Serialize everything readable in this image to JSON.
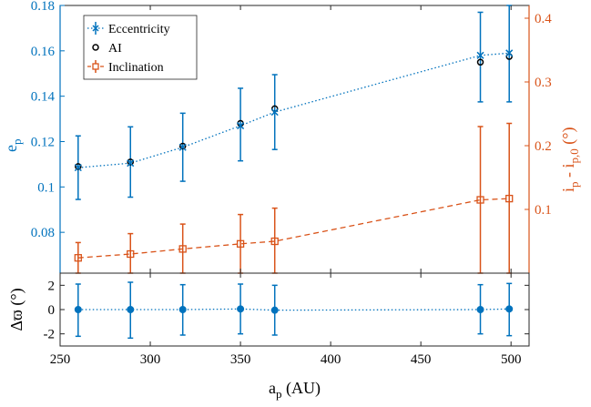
{
  "colors": {
    "blue": "#0072BD",
    "orange": "#D95319",
    "black": "#000000"
  },
  "chart_data": [
    {
      "type": "scatter",
      "panel": "top",
      "xlim": [
        250,
        510
      ],
      "ylim_left": [
        0.062,
        0.18
      ],
      "ylim_right": [
        0.0,
        0.42
      ],
      "x_ticks": [
        "250",
        "300",
        "350",
        "400",
        "450",
        "500"
      ],
      "y_left_ticks": [
        "0.08",
        "0.1",
        "0.12",
        "0.14",
        "0.16",
        "0.18"
      ],
      "y_left_tick_values": [
        0.08,
        0.1,
        0.12,
        0.14,
        0.16,
        0.18
      ],
      "y_right_ticks": [
        "0.1",
        "0.2",
        "0.3",
        "0.4"
      ],
      "y_right_tick_values": [
        0.1,
        0.2,
        0.3,
        0.4
      ],
      "y_left_label": {
        "base": "e",
        "sub": "p"
      },
      "y_right_label": {
        "base": "i",
        "sub1": "p",
        "mid": " - i",
        "sub2": "p,0",
        "tail": " (°)"
      },
      "legend_position": "top-left",
      "legend": [
        "Eccentricity",
        "AI",
        "Inclination"
      ],
      "x": [
        260,
        289,
        318,
        350,
        369,
        483,
        499
      ],
      "series": [
        {
          "name": "Eccentricity",
          "axis": "left",
          "marker": "x",
          "line": "dotted",
          "color": "#0072BD",
          "values": [
            0.1085,
            0.1105,
            0.1175,
            0.127,
            0.133,
            0.158,
            0.159
          ],
          "err_low": [
            0.0945,
            0.0955,
            0.1025,
            0.1115,
            0.1165,
            0.1375,
            0.1375
          ],
          "err_high": [
            0.1225,
            0.1265,
            0.1325,
            0.1435,
            0.1495,
            0.177,
            0.18
          ]
        },
        {
          "name": "AI",
          "axis": "left",
          "marker": "circle",
          "line": "none",
          "color": "#000000",
          "values": [
            0.109,
            0.111,
            0.118,
            0.128,
            0.1345,
            0.155,
            0.1575
          ]
        },
        {
          "name": "Inclination",
          "axis": "right",
          "marker": "square",
          "line": "dashed",
          "color": "#D95319",
          "values": [
            0.024,
            0.03,
            0.038,
            0.046,
            0.05,
            0.115,
            0.117
          ],
          "err_low": [
            0.0,
            0.0,
            0.0,
            0.0,
            0.0,
            0.0,
            0.0
          ],
          "err_high": [
            0.048,
            0.062,
            0.077,
            0.092,
            0.102,
            0.23,
            0.235
          ]
        }
      ]
    },
    {
      "type": "scatter",
      "panel": "bottom",
      "xlim": [
        250,
        510
      ],
      "ylim": [
        -3,
        3
      ],
      "x_ticks": [
        "250",
        "300",
        "350",
        "400",
        "450",
        "500"
      ],
      "x_label": {
        "base": "a",
        "sub": "p",
        "tail": " (AU)"
      },
      "y_ticks": [
        "-2",
        "0",
        "2"
      ],
      "y_tick_values": [
        -2,
        0,
        2
      ],
      "y_label": "Δϖ (°)",
      "x": [
        260,
        289,
        318,
        350,
        369,
        483,
        499
      ],
      "series": [
        {
          "marker": "filled-circle",
          "line": "dotted",
          "color": "#0072BD",
          "values": [
            0.0,
            0.0,
            0.0,
            0.05,
            -0.05,
            0.0,
            0.05
          ],
          "err_low": [
            -2.2,
            -2.35,
            -2.1,
            -2.0,
            -2.1,
            -2.0,
            -2.15
          ],
          "err_high": [
            2.1,
            2.25,
            2.05,
            2.1,
            2.0,
            2.05,
            2.15
          ]
        }
      ]
    }
  ]
}
